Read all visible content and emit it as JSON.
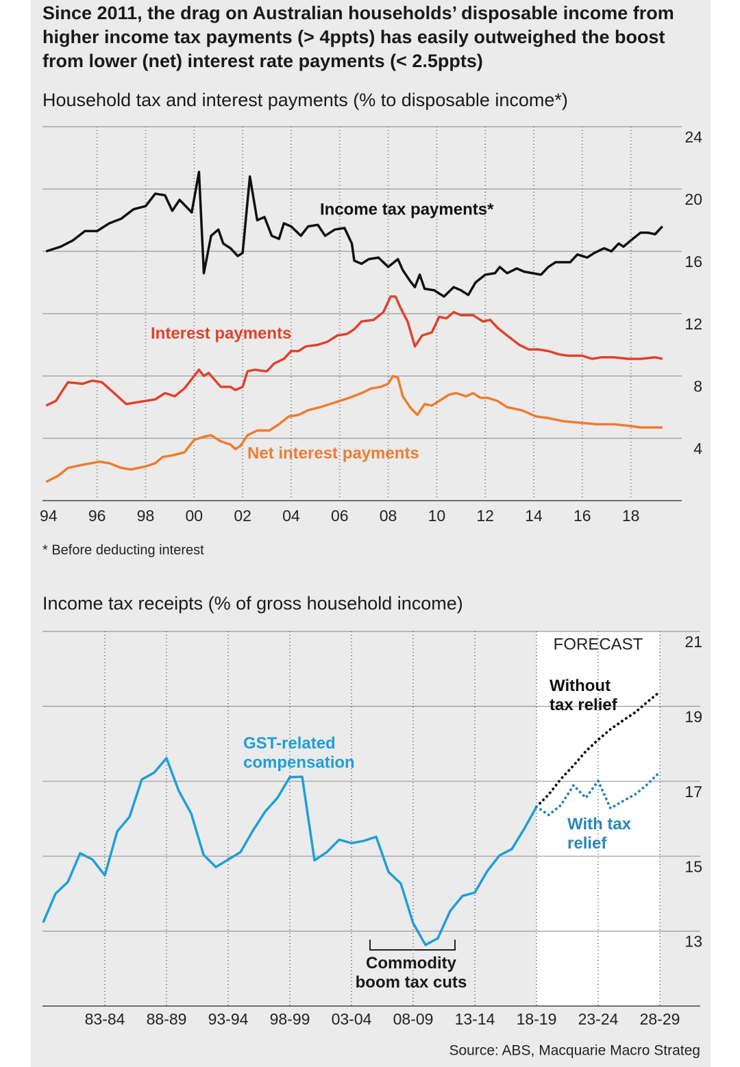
{
  "title": "Since 2011, the drag on Australian households’ disposable income from higher income tax payments (> 4ppts) has easily outweighed the boost from lower (net) interest rate payments (< 2.5ppts)",
  "chart_data": [
    {
      "type": "line",
      "title": "Household tax and interest payments (% to disposable income*)",
      "note": "* Before deducting interest",
      "xlim": [
        1993.75,
        2020.1
      ],
      "xticks": [
        {
          "value": 1994,
          "label": "94"
        },
        {
          "value": 1996,
          "label": "96"
        },
        {
          "value": 1998,
          "label": "98"
        },
        {
          "value": 2000,
          "label": "00"
        },
        {
          "value": 2002,
          "label": "02"
        },
        {
          "value": 2004,
          "label": "04"
        },
        {
          "value": 2006,
          "label": "06"
        },
        {
          "value": 2008,
          "label": "08"
        },
        {
          "value": 2010,
          "label": "10"
        },
        {
          "value": 2012,
          "label": "12"
        },
        {
          "value": 2014,
          "label": "14"
        },
        {
          "value": 2016,
          "label": "16"
        },
        {
          "value": 2018,
          "label": "18"
        }
      ],
      "ylim": [
        0,
        24
      ],
      "yticks": [
        4,
        8,
        12,
        16,
        20,
        24
      ],
      "grid": true,
      "series": [
        {
          "name": "Income tax payments*",
          "color": "#111111",
          "x": [
            1993.9,
            1994.5,
            1995.0,
            1995.5,
            1996.0,
            1996.5,
            1997.0,
            1997.5,
            1998.0,
            1998.4,
            1998.8,
            1999.1,
            1999.4,
            1999.9,
            2000.2,
            2000.4,
            2000.7,
            2001.0,
            2001.2,
            2001.5,
            2001.8,
            2002.0,
            2002.3,
            2002.6,
            2002.9,
            2003.2,
            2003.5,
            2003.7,
            2004.0,
            2004.4,
            2004.7,
            2005.1,
            2005.4,
            2005.8,
            2006.2,
            2006.5,
            2006.6,
            2006.9,
            2007.2,
            2007.6,
            2008.0,
            2008.4,
            2008.6,
            2008.9,
            2009.1,
            2009.3,
            2009.5,
            2009.9,
            2010.3,
            2010.7,
            2011.0,
            2011.3,
            2011.6,
            2012.0,
            2012.4,
            2012.6,
            2012.9,
            2013.3,
            2013.6,
            2014.3,
            2014.6,
            2014.9,
            2015.5,
            2015.8,
            2016.2,
            2016.5,
            2016.9,
            2017.2,
            2017.5,
            2017.7,
            2018.0,
            2018.4,
            2018.7,
            2019.0,
            2019.3
          ],
          "values": [
            16.0,
            16.3,
            16.7,
            17.3,
            17.3,
            17.8,
            18.1,
            18.7,
            18.9,
            19.7,
            19.6,
            18.6,
            19.3,
            18.5,
            21.1,
            14.6,
            17.0,
            17.4,
            16.5,
            16.2,
            15.7,
            15.9,
            20.8,
            18.0,
            18.2,
            17.0,
            16.8,
            17.8,
            17.6,
            17.0,
            17.6,
            17.7,
            17.0,
            17.4,
            17.5,
            16.5,
            15.4,
            15.2,
            15.5,
            15.6,
            15.0,
            15.5,
            14.8,
            14.1,
            13.7,
            14.5,
            13.6,
            13.5,
            13.1,
            13.7,
            13.5,
            13.2,
            14.0,
            14.5,
            14.6,
            15.0,
            14.6,
            14.9,
            14.7,
            14.5,
            15.0,
            15.3,
            15.3,
            15.8,
            15.6,
            15.9,
            16.2,
            16.0,
            16.5,
            16.3,
            16.7,
            17.2,
            17.2,
            17.1,
            17.6
          ]
        },
        {
          "name": "Interest payments",
          "color": "#e2412b",
          "x": [
            1993.9,
            1994.3,
            1994.8,
            1995.4,
            1995.8,
            1996.2,
            1996.7,
            1997.2,
            1998.0,
            1998.4,
            1998.8,
            1999.2,
            1999.6,
            2000.2,
            2000.4,
            2000.6,
            2001.1,
            2001.5,
            2001.7,
            2002.0,
            2002.2,
            2002.5,
            2003.0,
            2003.3,
            2003.7,
            2004.0,
            2004.3,
            2004.6,
            2005.1,
            2005.5,
            2005.9,
            2006.3,
            2006.6,
            2006.9,
            2007.4,
            2007.8,
            2008.1,
            2008.3,
            2008.5,
            2008.8,
            2009.1,
            2009.4,
            2009.8,
            2010.1,
            2010.4,
            2010.7,
            2011.0,
            2011.5,
            2011.9,
            2012.2,
            2012.5,
            2012.9,
            2013.4,
            2013.8,
            2014.2,
            2014.6,
            2015.0,
            2015.4,
            2016.0,
            2016.4,
            2016.8,
            2017.3,
            2017.9,
            2018.4,
            2019.0,
            2019.3
          ],
          "values": [
            6.1,
            6.4,
            7.6,
            7.5,
            7.7,
            7.6,
            6.9,
            6.2,
            6.4,
            6.5,
            6.9,
            6.7,
            7.2,
            8.4,
            8.0,
            8.2,
            7.3,
            7.3,
            7.1,
            7.3,
            8.3,
            8.4,
            8.3,
            8.8,
            9.1,
            9.6,
            9.6,
            9.9,
            10.0,
            10.2,
            10.6,
            10.7,
            11.0,
            11.5,
            11.6,
            12.1,
            13.1,
            13.1,
            12.4,
            11.5,
            9.9,
            10.6,
            10.8,
            11.8,
            11.7,
            12.1,
            11.9,
            11.9,
            11.5,
            11.6,
            11.1,
            10.6,
            10.0,
            9.7,
            9.7,
            9.6,
            9.4,
            9.3,
            9.3,
            9.1,
            9.2,
            9.2,
            9.1,
            9.1,
            9.2,
            9.1
          ]
        },
        {
          "name": "Net interest payments",
          "color": "#ee7d2f",
          "x": [
            1993.9,
            1994.4,
            1994.8,
            1995.4,
            1996.1,
            1996.5,
            1997.0,
            1997.4,
            1998.0,
            1998.4,
            1998.7,
            1999.1,
            1999.6,
            2000.0,
            2000.4,
            2000.7,
            2001.1,
            2001.5,
            2001.7,
            2001.9,
            2002.2,
            2002.6,
            2003.1,
            2003.5,
            2003.9,
            2004.3,
            2004.7,
            2005.2,
            2005.6,
            2006.0,
            2006.4,
            2006.9,
            2007.3,
            2007.7,
            2008.0,
            2008.2,
            2008.4,
            2008.6,
            2008.9,
            2009.2,
            2009.5,
            2009.8,
            2010.2,
            2010.5,
            2010.8,
            2011.2,
            2011.5,
            2011.8,
            2012.1,
            2012.5,
            2012.9,
            2013.5,
            2014.1,
            2014.6,
            2015.2,
            2015.9,
            2016.6,
            2017.3,
            2017.9,
            2018.4,
            2019.3
          ],
          "values": [
            1.2,
            1.6,
            2.1,
            2.3,
            2.5,
            2.4,
            2.1,
            2.0,
            2.2,
            2.4,
            2.8,
            2.9,
            3.1,
            3.9,
            4.1,
            4.2,
            3.8,
            3.6,
            3.3,
            3.5,
            4.2,
            4.5,
            4.5,
            4.9,
            5.4,
            5.5,
            5.8,
            6.0,
            6.2,
            6.4,
            6.6,
            6.9,
            7.2,
            7.3,
            7.5,
            8.0,
            7.9,
            6.7,
            6.0,
            5.5,
            6.2,
            6.1,
            6.5,
            6.8,
            6.9,
            6.7,
            6.9,
            6.6,
            6.6,
            6.4,
            6.0,
            5.8,
            5.4,
            5.3,
            5.1,
            5.0,
            4.9,
            4.9,
            4.8,
            4.7,
            4.7
          ]
        }
      ]
    },
    {
      "type": "line",
      "title": "Income tax receipts (% of gross household income)",
      "categories": [
        null,
        null,
        null,
        null,
        null,
        "83-84",
        null,
        null,
        null,
        null,
        "88-89",
        null,
        null,
        null,
        null,
        "93-94",
        null,
        null,
        null,
        null,
        "98-99",
        null,
        null,
        null,
        null,
        "03-04",
        null,
        null,
        null,
        null,
        "08-09",
        null,
        null,
        null,
        null,
        "13-14",
        null,
        null,
        null,
        null,
        "18-19",
        null,
        null,
        null,
        null,
        "23-24",
        null,
        null,
        null,
        null,
        "28-29"
      ],
      "ylim": [
        11,
        21
      ],
      "yticks": [
        13,
        15,
        17,
        19,
        21
      ],
      "grid": true,
      "annotations": [
        "FORECAST",
        "GST-related compensation",
        "Commodity boom tax cuts"
      ],
      "source": "Source: ABS, Macquarie Macro Strateg",
      "series": [
        {
          "color": "#1f9fd8",
          "style": "solid",
          "values": [
            13.23,
            14.0,
            14.31,
            15.08,
            14.91,
            14.49,
            15.66,
            16.05,
            17.05,
            17.23,
            17.62,
            16.74,
            16.14,
            15.04,
            14.71,
            14.91,
            15.11,
            15.68,
            16.19,
            16.56,
            17.11,
            17.12,
            14.89,
            15.11,
            15.44,
            15.35,
            15.41,
            15.52,
            14.58,
            14.27,
            13.21,
            12.63,
            12.81,
            13.54,
            13.94,
            14.03,
            14.6,
            15.02,
            15.19,
            15.73,
            16.32,
            null,
            null,
            null,
            null,
            null,
            null,
            null,
            null,
            null,
            null
          ]
        },
        {
          "name": "Without tax relief",
          "color": "#111111",
          "style": "dotted",
          "values": [
            null,
            null,
            null,
            null,
            null,
            null,
            null,
            null,
            null,
            null,
            null,
            null,
            null,
            null,
            null,
            null,
            null,
            null,
            null,
            null,
            null,
            null,
            null,
            null,
            null,
            null,
            null,
            null,
            null,
            null,
            null,
            null,
            null,
            null,
            null,
            null,
            null,
            null,
            null,
            null,
            16.32,
            16.65,
            17.07,
            17.42,
            17.8,
            18.11,
            18.39,
            18.62,
            18.84,
            19.12,
            19.39
          ]
        },
        {
          "name": "With tax relief",
          "color": "#2a86bb",
          "style": "dotted",
          "values": [
            null,
            null,
            null,
            null,
            null,
            null,
            null,
            null,
            null,
            null,
            null,
            null,
            null,
            null,
            null,
            null,
            null,
            null,
            null,
            null,
            null,
            null,
            null,
            null,
            null,
            null,
            null,
            null,
            null,
            null,
            null,
            null,
            null,
            null,
            null,
            null,
            null,
            null,
            null,
            null,
            16.32,
            16.1,
            16.37,
            16.89,
            16.56,
            17.01,
            16.28,
            16.47,
            16.65,
            16.92,
            17.25
          ]
        }
      ]
    }
  ]
}
